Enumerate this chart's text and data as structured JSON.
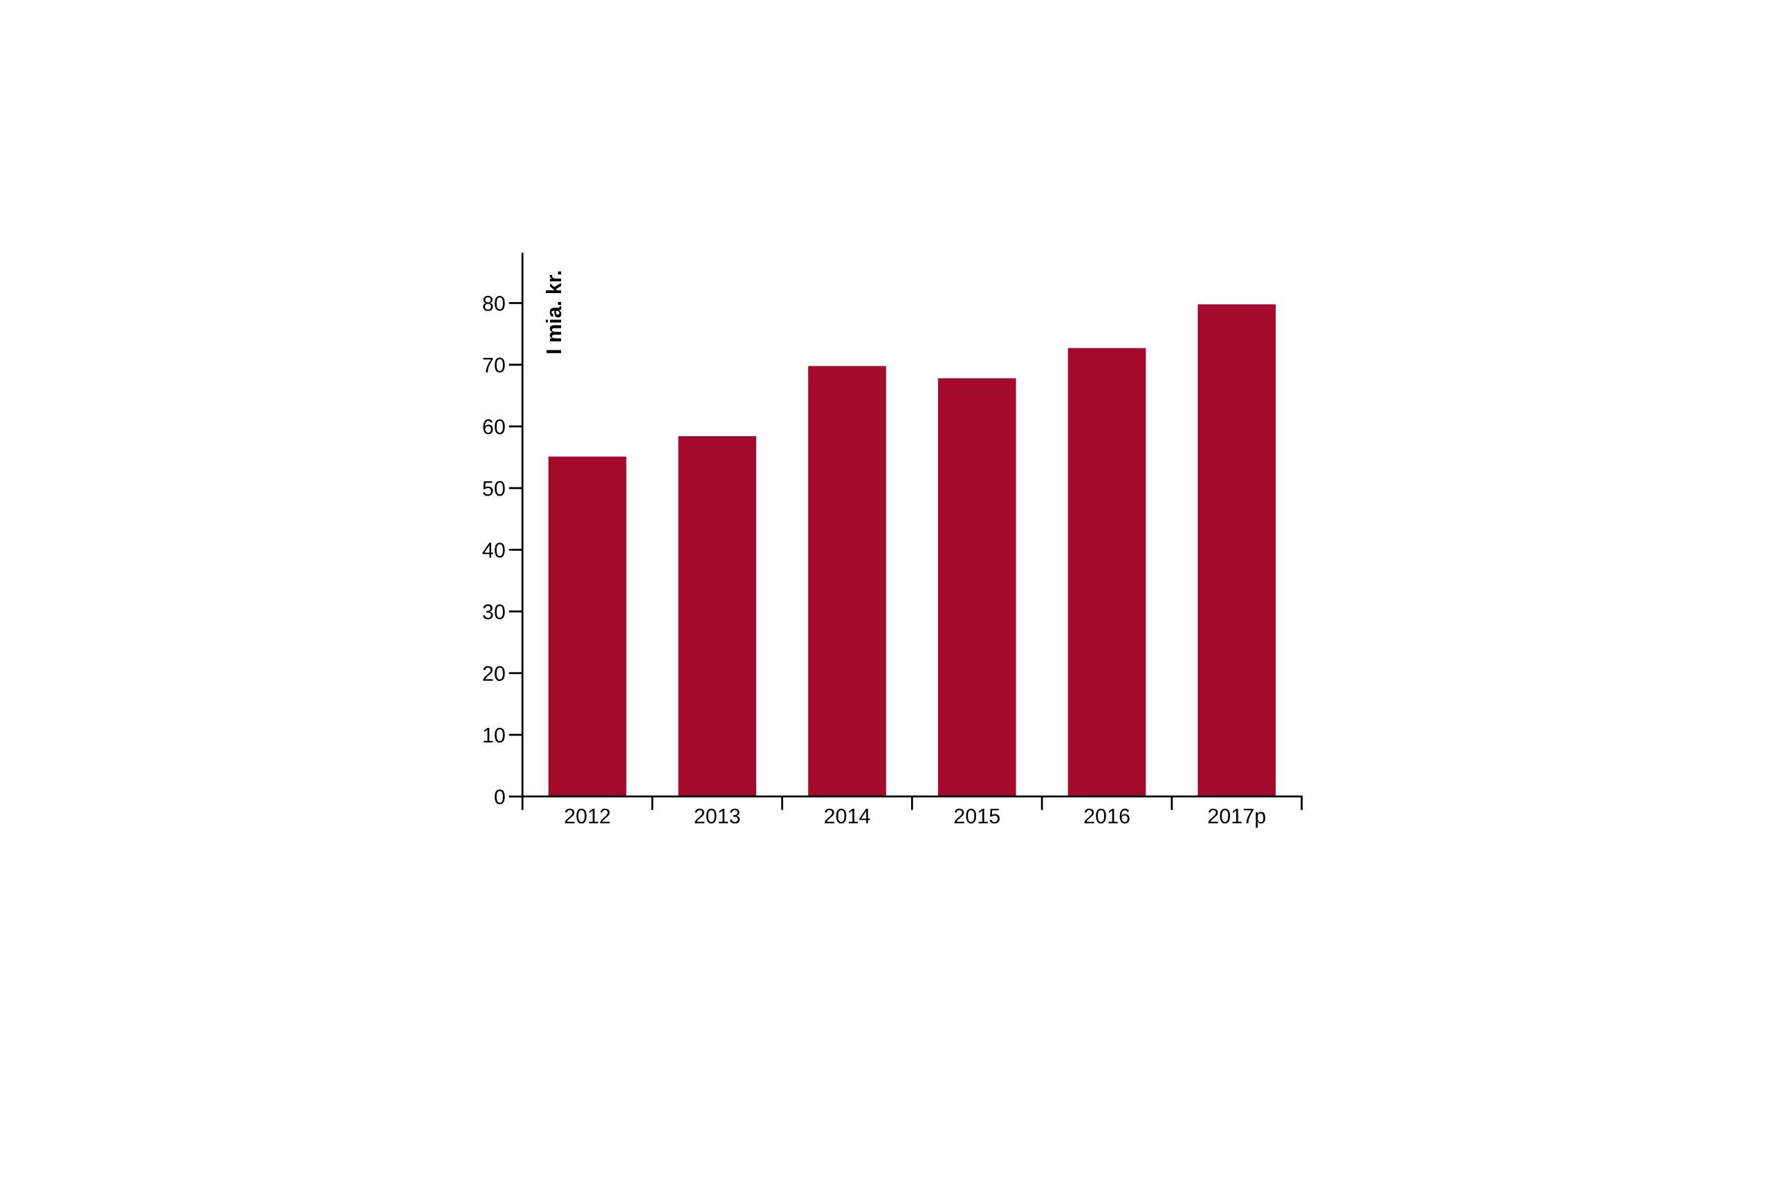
{
  "chart_data": {
    "type": "bar",
    "ylabel": "I mia. kr.",
    "categories": [
      "2012",
      "2013",
      "2014",
      "2015",
      "2016",
      "2017p"
    ],
    "values": [
      55.1,
      58.4,
      69.8,
      67.8,
      72.7,
      79.8
    ],
    "color": "#a50a2d",
    "ylim": [
      0,
      88
    ],
    "yticks": [
      0,
      10,
      20,
      30,
      40,
      50,
      60,
      70,
      80
    ],
    "grid": false,
    "legend": false
  }
}
